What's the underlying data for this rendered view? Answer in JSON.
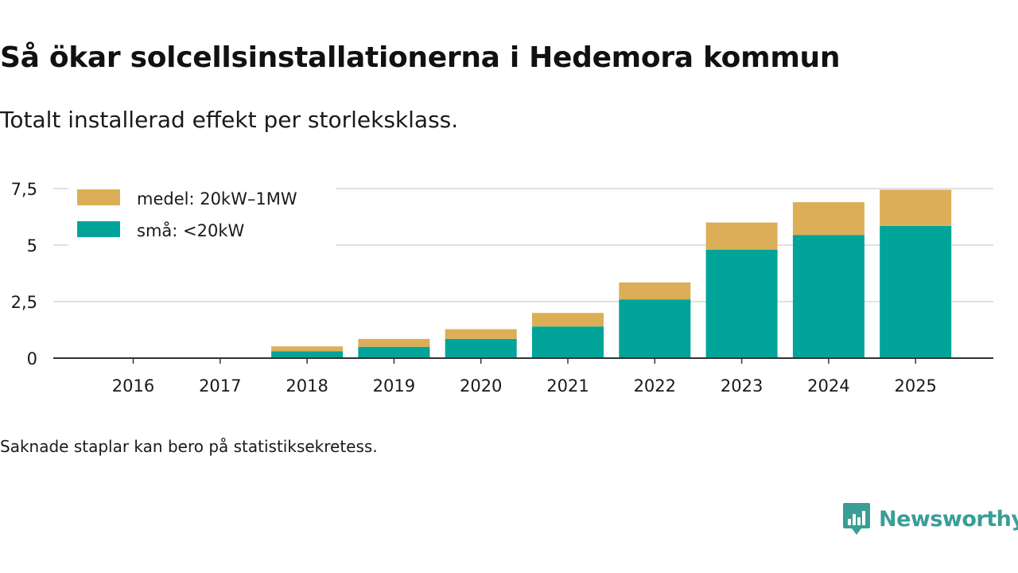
{
  "header": {
    "title": "Så ökar solcellsinstallationerna i Hedemora kommun",
    "subtitle": "Totalt installerad effekt per storleksklass."
  },
  "footer": {
    "note": "Saknade staplar kan bero på statistiksekretess.",
    "brand": "Newsworthy",
    "brand_icon": "newsworthy-logo-icon"
  },
  "colors": {
    "small": "#00a499",
    "medium": "#dcae58",
    "grid": "#d9d9d9",
    "axis": "#333333",
    "brand": "#3a9e96"
  },
  "chart_data": {
    "type": "bar",
    "stacked": true,
    "title": "Så ökar solcellsinstallationerna i Hedemora kommun",
    "subtitle": "Totalt installerad effekt per storleksklass.",
    "xlabel": "",
    "ylabel": "",
    "categories": [
      "2016",
      "2017",
      "2018",
      "2019",
      "2020",
      "2021",
      "2022",
      "2023",
      "2024",
      "2025"
    ],
    "series": [
      {
        "name": "små: <20kW",
        "color": "#00a499",
        "values": [
          null,
          null,
          0.3,
          0.5,
          0.85,
          1.4,
          2.6,
          4.8,
          5.45,
          5.85
        ]
      },
      {
        "name": "medel: 20kW–1MW",
        "color": "#dcae58",
        "values": [
          null,
          null,
          0.22,
          0.35,
          0.43,
          0.6,
          0.75,
          1.2,
          1.45,
          1.6
        ]
      }
    ],
    "legend_order": [
      "medel: 20kW–1MW",
      "små: <20kW"
    ],
    "legend_position": "top-left",
    "ylim": [
      0,
      7.5
    ],
    "yticks": [
      0,
      2.5,
      5,
      7.5
    ],
    "ytick_labels": [
      "0",
      "2,5",
      "5",
      "7,5"
    ],
    "grid": true
  }
}
